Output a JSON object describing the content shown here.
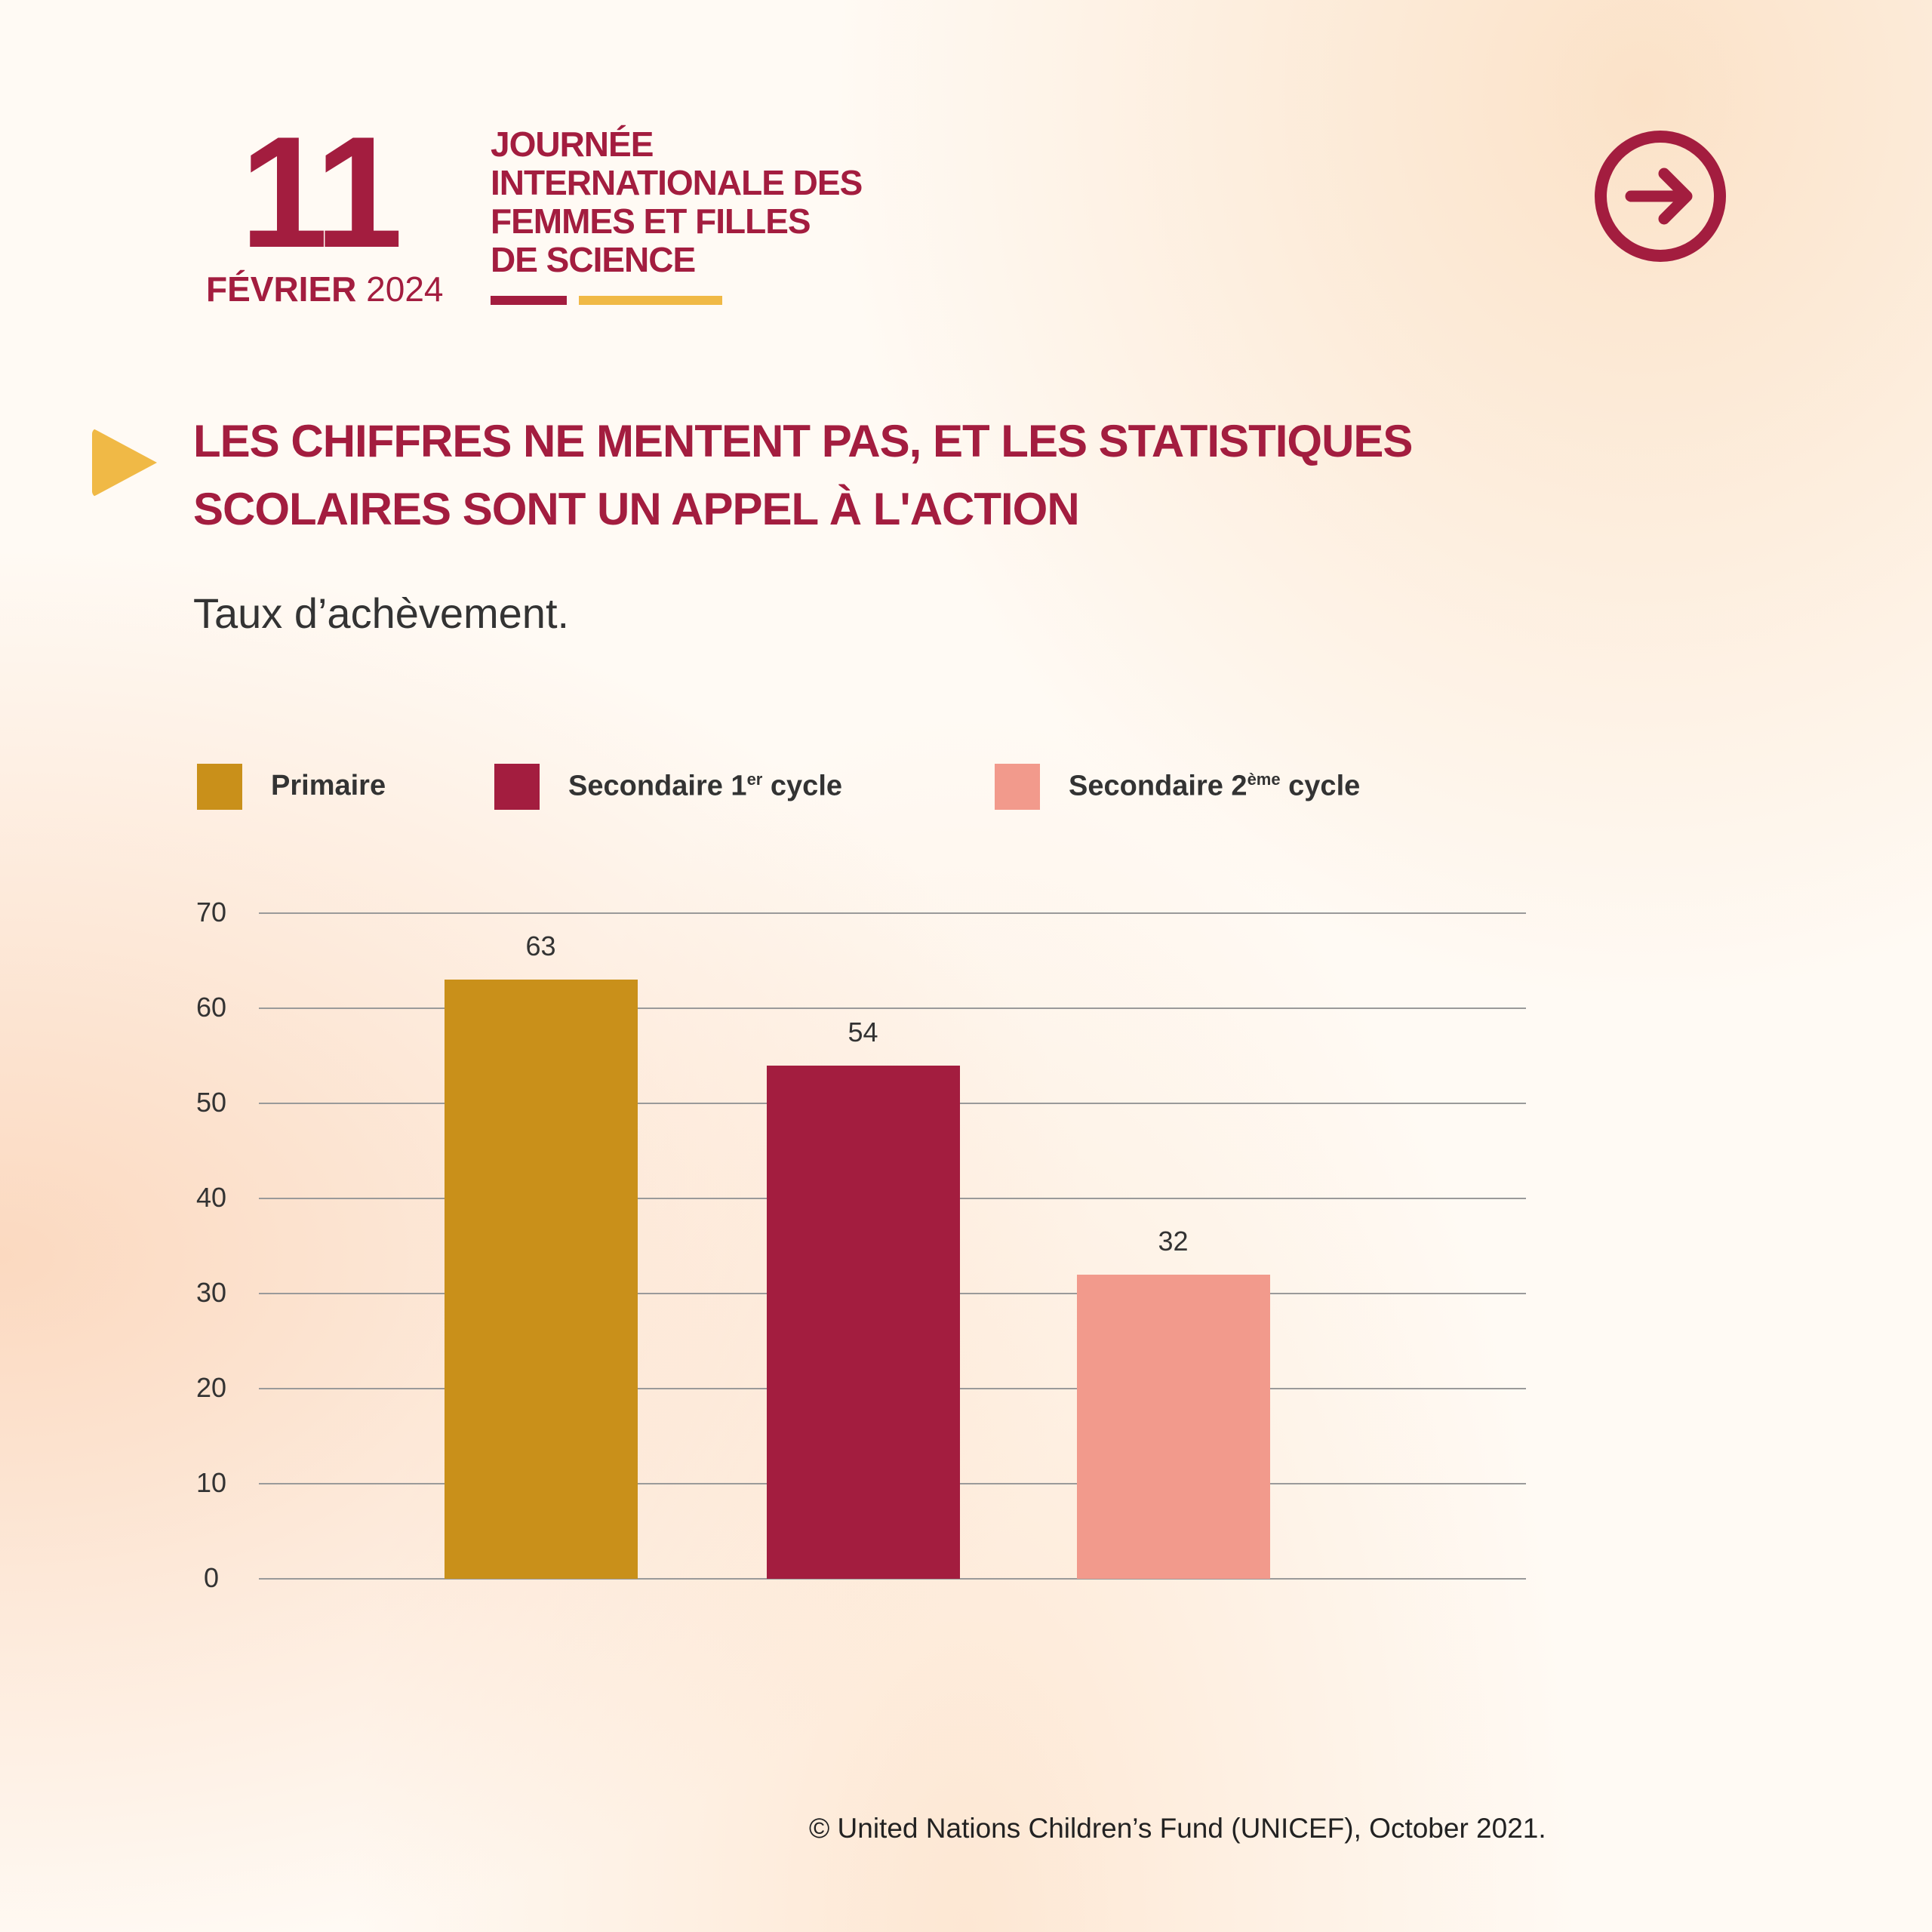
{
  "header": {
    "day": "11",
    "month": "FÉVRIER",
    "year": "2024",
    "event_lines": [
      "JOURNÉE",
      "INTERNATIONALE DES",
      "FEMMES ET FILLES",
      "DE SCIENCE"
    ]
  },
  "nav": {
    "next_icon": "arrow-right-circle-icon"
  },
  "heading_lines": [
    "LES CHIFFRES NE MENTENT PAS, ET LES STATISTIQUES",
    "SCOLAIRES SONT UN APPEL À L'ACTION"
  ],
  "subtitle": "Taux d’achèvement.",
  "legend": [
    {
      "label": "Primaire",
      "sup": "",
      "suffix": "",
      "color": "#c9901a"
    },
    {
      "label": "Secondaire 1",
      "sup": "er",
      "suffix": " cycle",
      "color": "#a31d3f"
    },
    {
      "label": "Secondaire 2",
      "sup": "ème",
      "suffix": " cycle",
      "color": "#f29a8c"
    }
  ],
  "chart_data": {
    "type": "bar",
    "title": "Taux d’achèvement.",
    "categories": [
      "Primaire",
      "Secondaire 1er cycle",
      "Secondaire 2ème cycle"
    ],
    "values": [
      63,
      54,
      32
    ],
    "colors": [
      "#c9901a",
      "#a31d3f",
      "#f29a8c"
    ],
    "ylim": [
      0,
      70
    ],
    "yticks": [
      0,
      10,
      20,
      30,
      40,
      50,
      60,
      70
    ],
    "grid": true,
    "legend": "top"
  },
  "footer": "© United Nations Children’s Fund (UNICEF), October 2021."
}
